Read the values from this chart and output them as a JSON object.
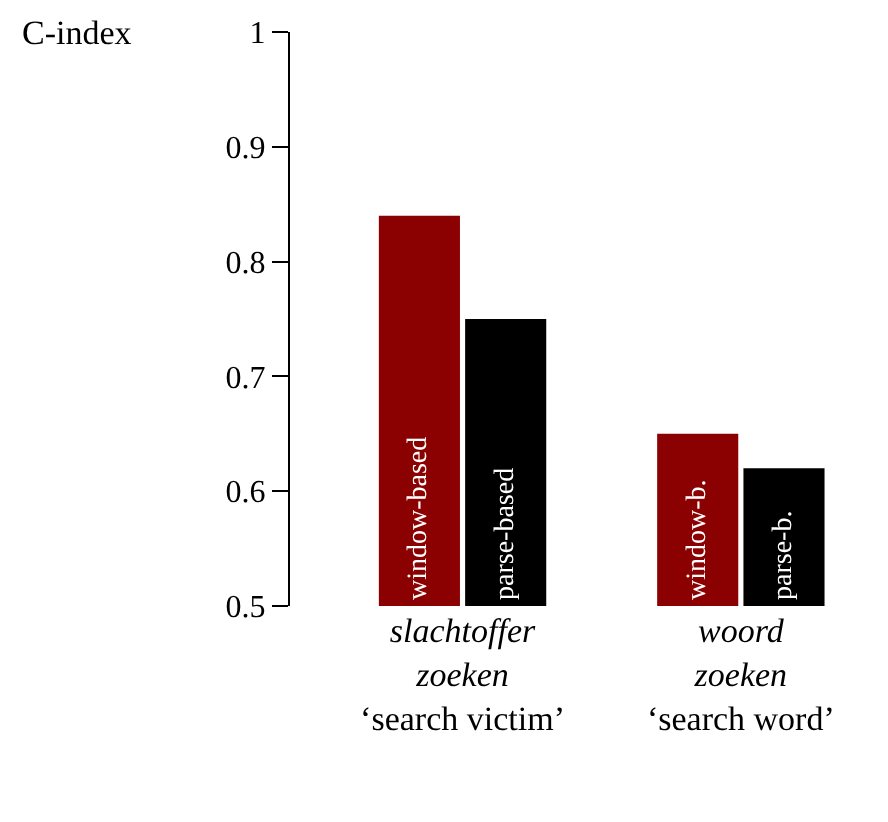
{
  "chart_data": {
    "type": "bar",
    "ylabel": "C-index",
    "categories": [
      "slachtoffer\nzoeken\n‘search victim’",
      "woord\nzoeken\n‘search word’"
    ],
    "series": [
      {
        "name": "window-based",
        "color": "#8b0000",
        "values": [
          0.84,
          0.65
        ]
      },
      {
        "name": "parse-based",
        "color": "#000000",
        "values": [
          0.75,
          0.62
        ]
      }
    ],
    "annotations": [
      {
        "text": "window-b.",
        "x": "woord\nzoeken\n‘search word’",
        "y": 0.65
      },
      {
        "text": "parse-b.",
        "x": "woord\nzoeken\n‘search word’",
        "y": 0.62
      }
    ],
    "ylim": [
      0.5,
      1
    ],
    "yticks": [
      0.5,
      0.6,
      0.7,
      0.8,
      0.9,
      1
    ],
    "legend": false
  }
}
